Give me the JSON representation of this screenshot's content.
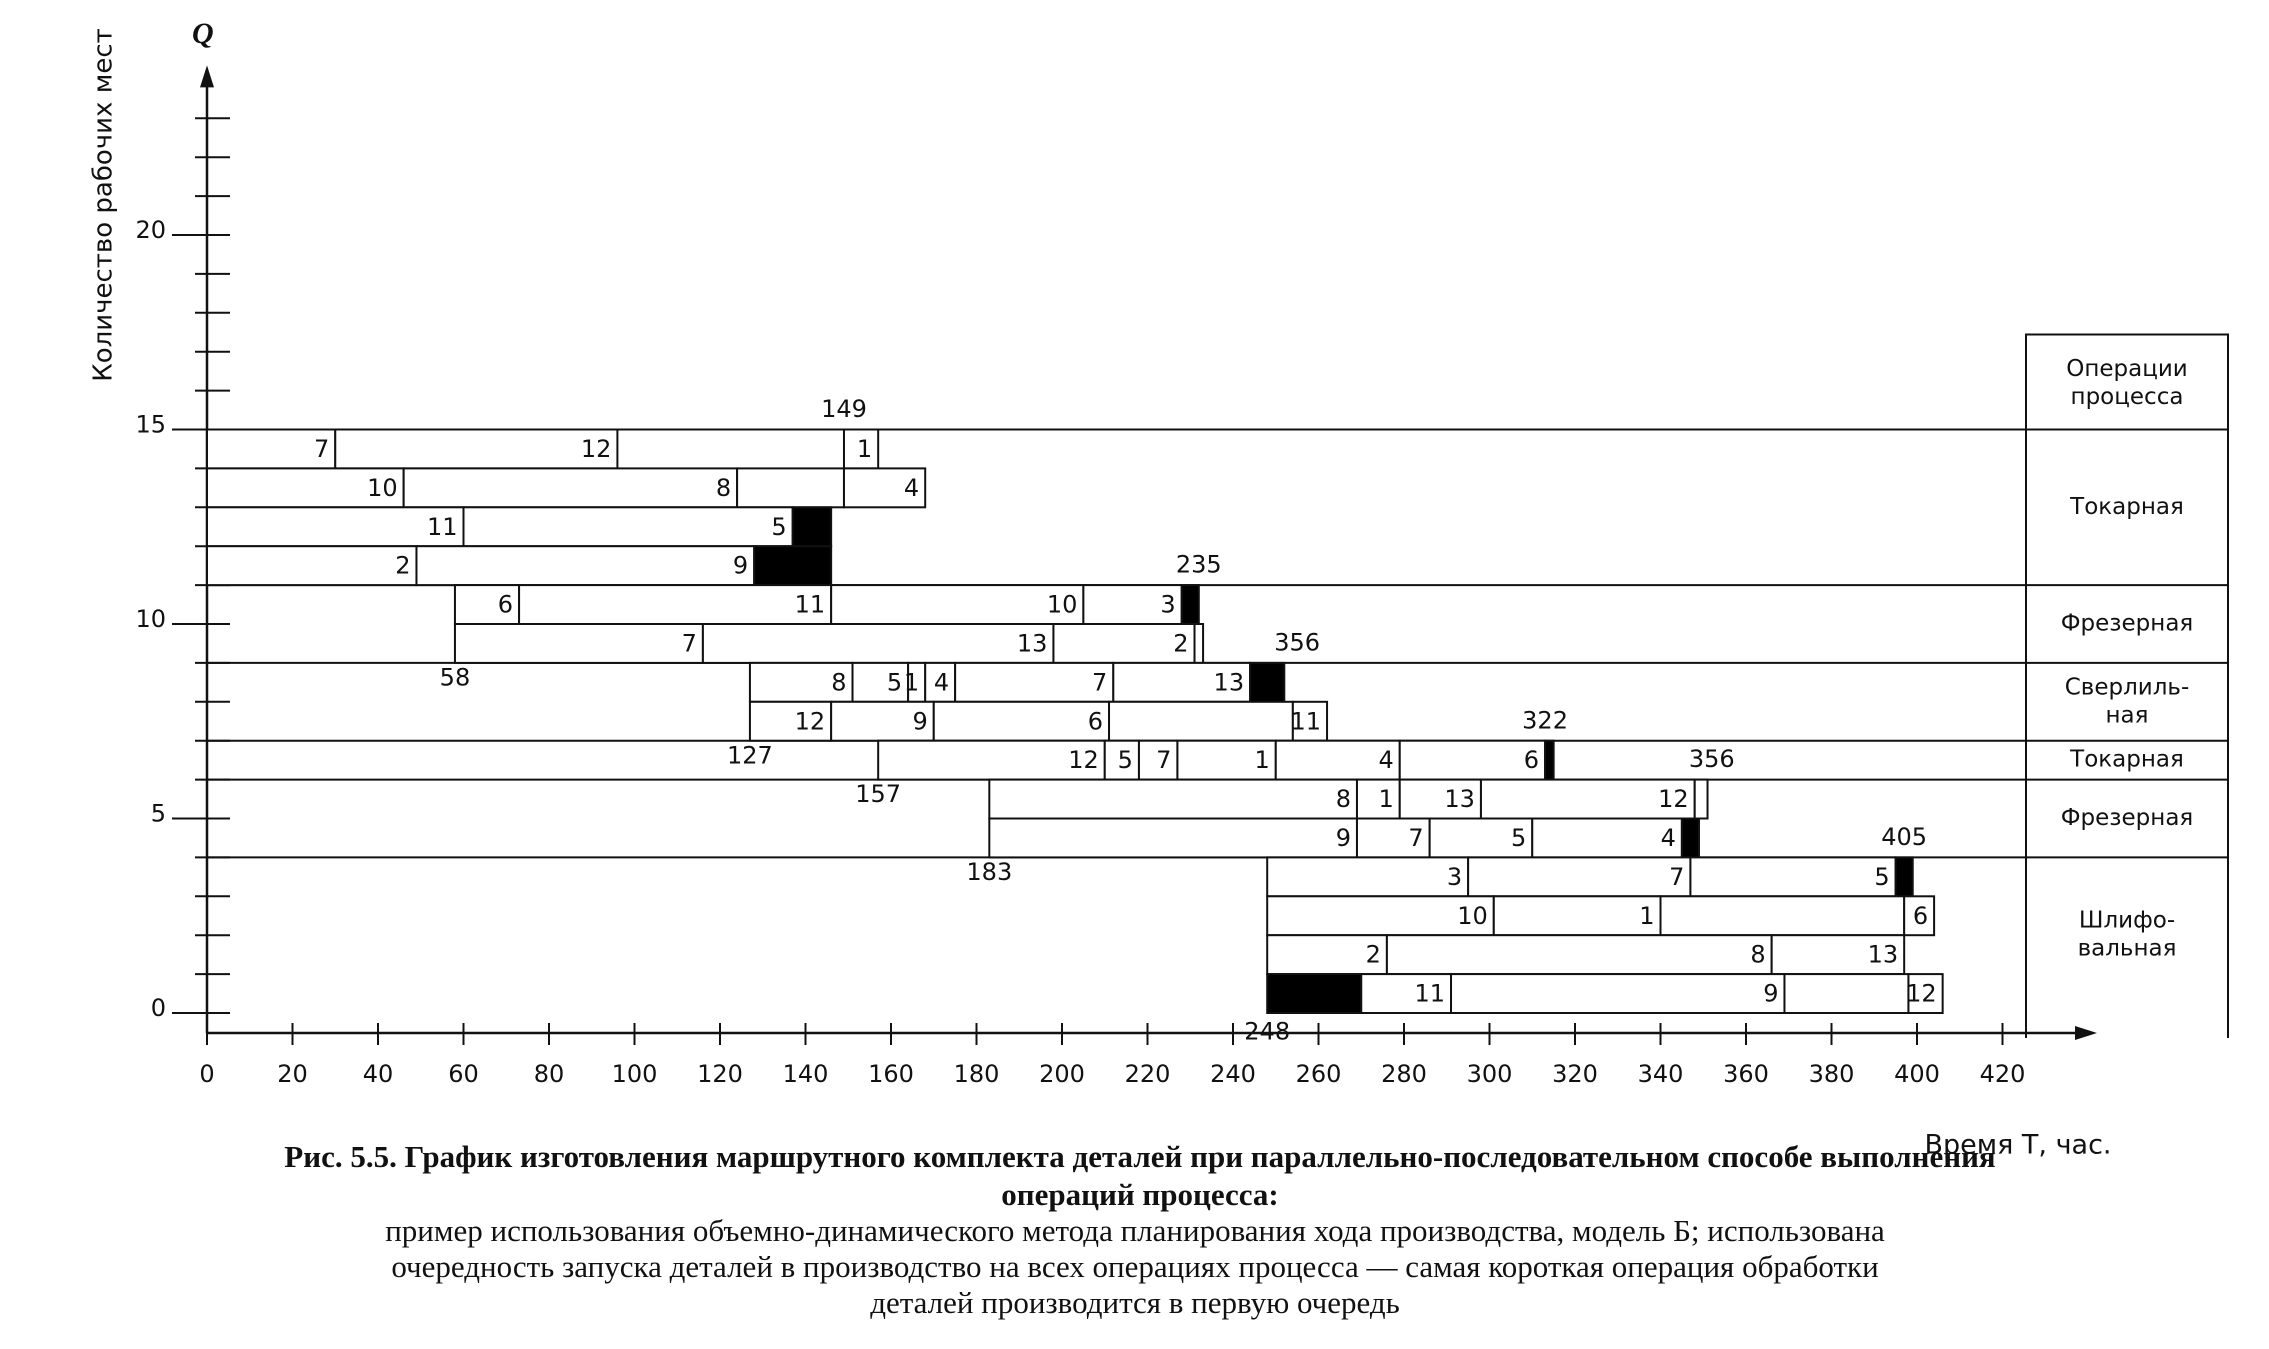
{
  "chart_data": {
    "type": "gantt",
    "y_label": "Количество рабочих мест",
    "y_symbol": "Q",
    "x_label": "Время Т, час.",
    "xlim": [
      0,
      420
    ],
    "xticks": [
      0,
      20,
      40,
      60,
      80,
      100,
      120,
      140,
      160,
      180,
      200,
      220,
      240,
      260,
      280,
      300,
      320,
      340,
      360,
      380,
      400,
      420
    ],
    "ylim": [
      0,
      24
    ],
    "yticks": [
      0,
      5,
      10,
      15,
      20
    ],
    "rows": [
      {
        "y": 14,
        "segments": [
          {
            "label": "7",
            "start": 0,
            "end": 30
          },
          {
            "label": "12",
            "start": 30,
            "end": 96
          },
          {
            "label": "1",
            "start": 149,
            "end": 157
          }
        ]
      },
      {
        "y": 13,
        "segments": [
          {
            "label": "10",
            "start": 0,
            "end": 46
          },
          {
            "label": "8",
            "start": 46,
            "end": 124
          },
          {
            "start": 124,
            "end": 149
          },
          {
            "label": "4",
            "start": 149,
            "end": 168
          }
        ]
      },
      {
        "y": 12,
        "segments": [
          {
            "label": "11",
            "start": 0,
            "end": 60
          },
          {
            "label": "5",
            "start": 60,
            "end": 137
          },
          {
            "start": 137,
            "end": 146,
            "idle": true
          }
        ]
      },
      {
        "y": 11,
        "segments": [
          {
            "label": "2",
            "start": 0,
            "end": 49
          },
          {
            "label": "9",
            "start": 49,
            "end": 128
          },
          {
            "start": 128,
            "end": 146,
            "idle": true
          }
        ]
      },
      {
        "y": 10,
        "segments": [
          {
            "label": "6",
            "start": 58,
            "end": 73
          },
          {
            "label": "11",
            "start": 73,
            "end": 146
          },
          {
            "label": "10",
            "start": 146,
            "end": 205
          },
          {
            "label": "3",
            "start": 205,
            "end": 228
          },
          {
            "start": 228,
            "end": 232,
            "idle": true
          }
        ]
      },
      {
        "y": 9,
        "segments": [
          {
            "label": "7",
            "start": 58,
            "end": 116
          },
          {
            "label": "13",
            "start": 116,
            "end": 198
          },
          {
            "label": "2",
            "start": 198,
            "end": 231
          },
          {
            "start": 231,
            "end": 233
          }
        ]
      },
      {
        "y": 8,
        "segments": [
          {
            "label": "8",
            "start": 127,
            "end": 151
          },
          {
            "label": "5",
            "start": 151,
            "end": 164
          },
          {
            "label": "1",
            "start": 164,
            "end": 168
          },
          {
            "label": "4",
            "start": 168,
            "end": 175
          },
          {
            "label": "7",
            "start": 175,
            "end": 212
          },
          {
            "label": "13",
            "start": 212,
            "end": 244
          },
          {
            "start": 244,
            "end": 252,
            "idle": true
          }
        ]
      },
      {
        "y": 7,
        "segments": [
          {
            "label": "12",
            "start": 127,
            "end": 146
          },
          {
            "label": "9",
            "start": 146,
            "end": 170
          },
          {
            "label": "6",
            "start": 170,
            "end": 211
          },
          {
            "start": 211,
            "end": 254
          },
          {
            "label": "11",
            "start": 254,
            "end": 262
          }
        ]
      },
      {
        "y": 6,
        "segments": [
          {
            "label": "12",
            "start": 157,
            "end": 210
          },
          {
            "label": "5",
            "start": 210,
            "end": 218
          },
          {
            "label": "7",
            "start": 218,
            "end": 227
          },
          {
            "label": "1",
            "start": 227,
            "end": 250
          },
          {
            "label": "4",
            "start": 250,
            "end": 279
          },
          {
            "label": "6",
            "start": 279,
            "end": 313
          },
          {
            "start": 313,
            "end": 315,
            "idle": true
          }
        ]
      },
      {
        "y": 5,
        "segments": [
          {
            "label": "8",
            "start": 183,
            "end": 269
          },
          {
            "label": "1",
            "start": 269,
            "end": 279
          },
          {
            "label": "13",
            "start": 279,
            "end": 298
          },
          {
            "label": "12",
            "start": 298,
            "end": 348
          },
          {
            "start": 348,
            "end": 351
          }
        ]
      },
      {
        "y": 4,
        "segments": [
          {
            "label": "9",
            "start": 183,
            "end": 269
          },
          {
            "label": "7",
            "start": 269,
            "end": 286
          },
          {
            "label": "5",
            "start": 286,
            "end": 310
          },
          {
            "label": "4",
            "start": 310,
            "end": 345
          },
          {
            "start": 345,
            "end": 349,
            "idle": true
          }
        ]
      },
      {
        "y": 3,
        "segments": [
          {
            "label": "3",
            "start": 248,
            "end": 295
          },
          {
            "label": "7",
            "start": 295,
            "end": 347
          },
          {
            "label": "5",
            "start": 347,
            "end": 395
          },
          {
            "start": 395,
            "end": 399,
            "idle": true
          }
        ]
      },
      {
        "y": 2,
        "segments": [
          {
            "label": "10",
            "start": 248,
            "end": 301
          },
          {
            "label": "1",
            "start": 301,
            "end": 340
          },
          {
            "start": 340,
            "end": 397
          },
          {
            "label": "6",
            "start": 397,
            "end": 404
          }
        ]
      },
      {
        "y": 1,
        "segments": [
          {
            "label": "2",
            "start": 248,
            "end": 276
          },
          {
            "label": "8",
            "start": 276,
            "end": 366
          },
          {
            "label": "13",
            "start": 366,
            "end": 397
          }
        ]
      },
      {
        "y": 0,
        "segments": [
          {
            "start": 248,
            "end": 270,
            "idle": true
          },
          {
            "label": "11",
            "start": 270,
            "end": 291
          },
          {
            "label": "9",
            "start": 291,
            "end": 369
          },
          {
            "start": 369,
            "end": 398
          },
          {
            "label": "12",
            "start": 398,
            "end": 406
          }
        ]
      }
    ],
    "annotations": [
      {
        "value": 149,
        "x": 149,
        "y": 15.5
      },
      {
        "value": 235,
        "x": 232,
        "y": 11.5
      },
      {
        "value": 58,
        "x": 58,
        "y": 8.6
      },
      {
        "value": 356,
        "x": 255,
        "y": 9.5
      },
      {
        "value": 127,
        "x": 127,
        "y": 6.6
      },
      {
        "value": 157,
        "x": 157,
        "y": 5.6
      },
      {
        "value": 322,
        "x": 313,
        "y": 7.5
      },
      {
        "value": 356,
        "x": 352,
        "y": 6.5
      },
      {
        "value": 183,
        "x": 183,
        "y": 3.6
      },
      {
        "value": 405,
        "x": 397,
        "y": 4.5
      },
      {
        "value": 248,
        "x": 248,
        "y": -0.5
      }
    ],
    "operations_header": [
      "Операции",
      "процесса"
    ],
    "operations": [
      {
        "name": [
          "Токарная"
        ],
        "from": 11,
        "to": 15
      },
      {
        "name": [
          "Фрезерная"
        ],
        "from": 9,
        "to": 11
      },
      {
        "name": [
          "Сверлиль-",
          "ная"
        ],
        "from": 7,
        "to": 9
      },
      {
        "name": [
          "Токарная"
        ],
        "from": 6,
        "to": 7
      },
      {
        "name": [
          "Фрезерная"
        ],
        "from": 4,
        "to": 6
      },
      {
        "name": [
          "Шлифо-",
          "вальная"
        ],
        "from": 0,
        "to": 4
      }
    ]
  },
  "caption": {
    "title": [
      "Рис. 5.5. График изготовления маршрутного комплекта деталей при параллельно-последовательном способе выполнения",
      "операций процесса:"
    ],
    "text": [
      "пример использования объемно-динамического метода планирования хода производства, модель Б; использована",
      "очередность запуска деталей в производство на всех операциях процесса — самая короткая операция обработки",
      "деталей производится в первую очередь"
    ]
  }
}
